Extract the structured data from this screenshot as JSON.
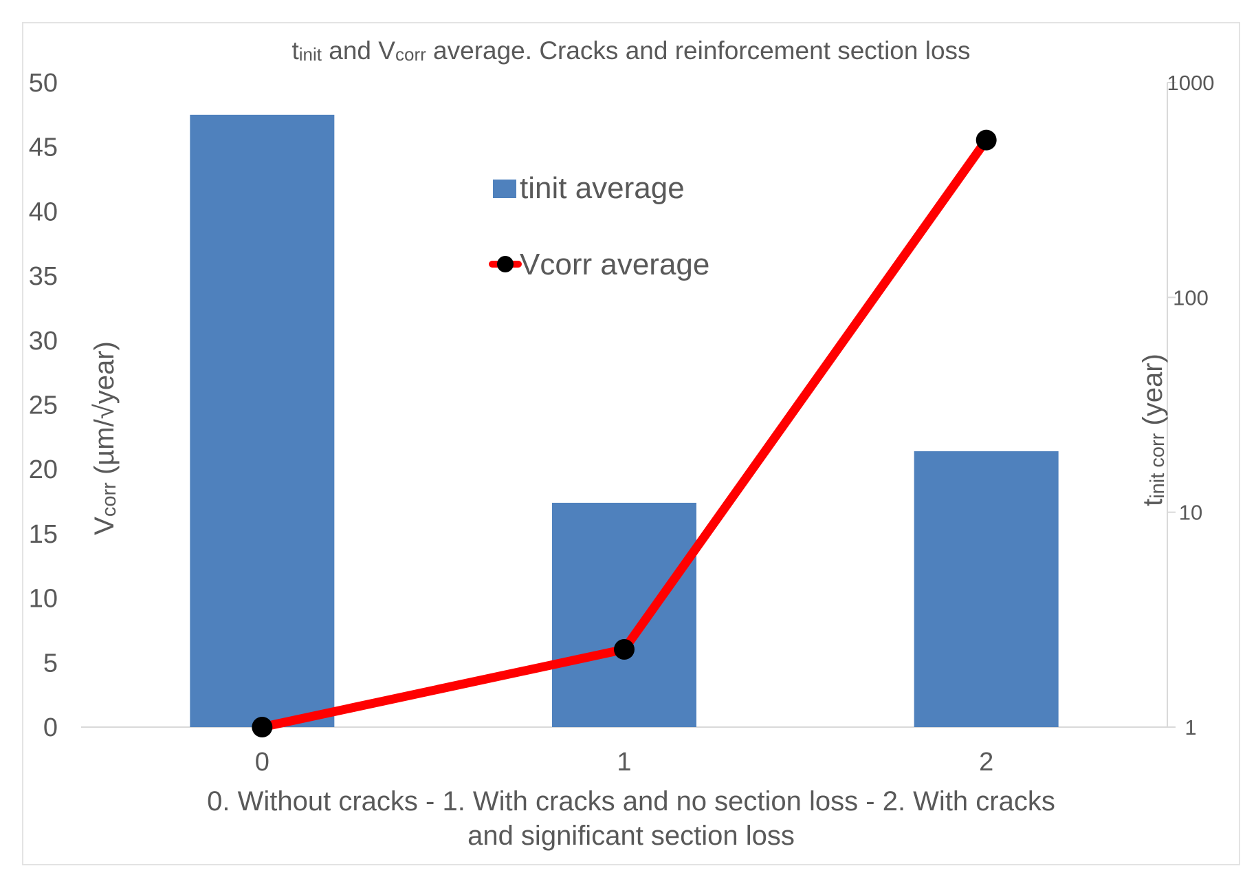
{
  "colors": {
    "bar": "#4f81bd",
    "line": "#ff0000",
    "marker": "#000000",
    "text": "#595959",
    "axis": "#d9d9d9"
  },
  "chart_data": {
    "type": "bar",
    "title": {
      "t": "t",
      "t_sub": "init",
      "mid": " and V",
      "v_sub": "corr",
      "rest": " average. Cracks and reinforcement section loss"
    },
    "categories": [
      "0",
      "1",
      "2"
    ],
    "xlabel_lines": [
      "0. Without cracks - 1. With cracks and no section loss - 2. With cracks",
      "and significant section loss"
    ],
    "ylabel_left": {
      "main": "V",
      "sub": "corr",
      "rest": " (µm/√year)"
    },
    "ylabel_right": {
      "main": "t",
      "sub": "init corr",
      "rest": " (year)"
    },
    "y_left": {
      "min": 0,
      "max": 50,
      "ticks": [
        "0",
        "5",
        "10",
        "15",
        "20",
        "25",
        "30",
        "35",
        "40",
        "45",
        "50"
      ]
    },
    "y_right": {
      "scale": "log",
      "min": 1,
      "max": 1000,
      "ticks": [
        "1",
        "10",
        "100",
        "1000"
      ]
    },
    "legend_position": "top-center",
    "series": [
      {
        "name": "tinit average",
        "kind": "bar",
        "axis": "left",
        "values": [
          47.5,
          17.4,
          21.4
        ]
      },
      {
        "name": "Vcorr average",
        "kind": "line",
        "axis": "right",
        "values": [
          1,
          2.3,
          540
        ]
      }
    ]
  }
}
